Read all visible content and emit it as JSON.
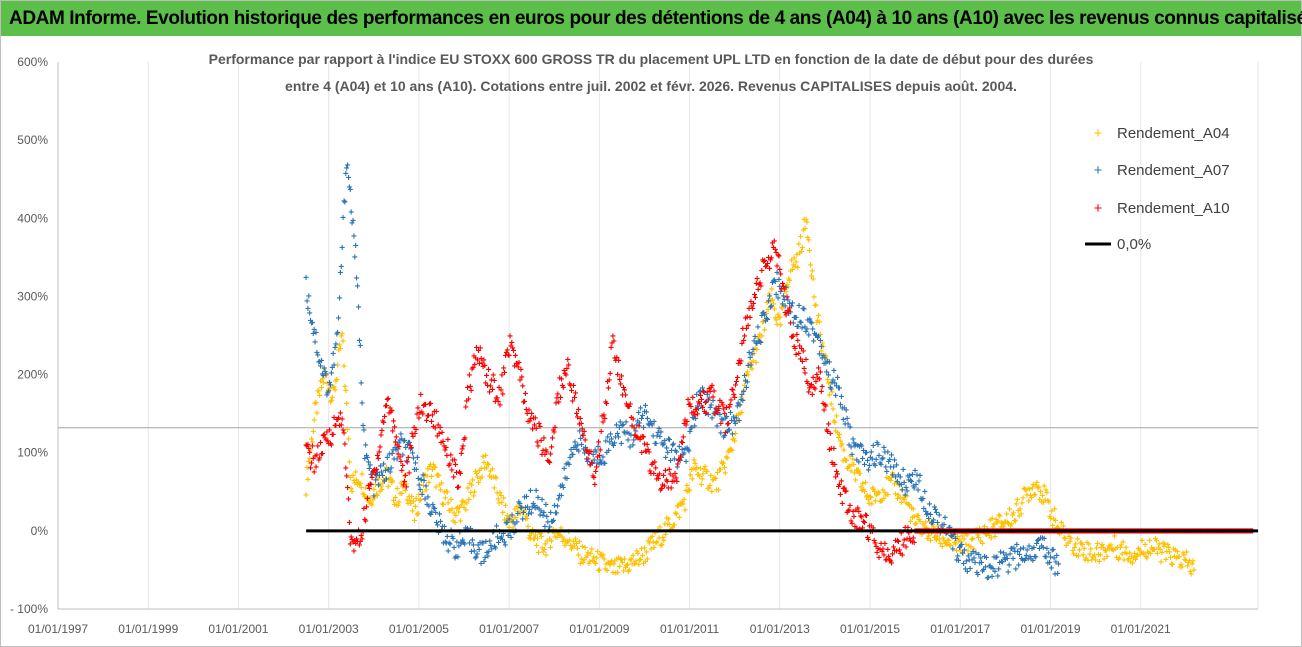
{
  "header": {
    "banner": "ADAM Informe. Evolution historique des performances en euros pour des détentions de 4 ans (A04) à 10 ans (A10) avec les revenus connus capitalisés"
  },
  "chart_data": {
    "type": "scatter",
    "title_lines": [
      "Performance par rapport à l'indice EU STOXX 600 GROSS TR  du placement UPL LTD en fonction de la date de début pour des durées",
      "entre 4 (A04) et 10 ans (A10).  Cotations entre juil. 2002 et févr. 2026. Revenus CAPITALISES depuis août. 2004."
    ],
    "x_tick_labels": [
      "01/01/1997",
      "01/01/1999",
      "01/01/2001",
      "01/01/2003",
      "01/01/2005",
      "01/01/2007",
      "01/01/2009",
      "01/01/2011",
      "01/01/2013",
      "01/01/2015",
      "01/01/2017",
      "01/01/2019",
      "01/01/2021"
    ],
    "x_tick_years": [
      1997,
      1999,
      2001,
      2003,
      2005,
      2007,
      2009,
      2011,
      2013,
      2015,
      2017,
      2019,
      2021
    ],
    "xlim": [
      1997,
      2023.6
    ],
    "y_tick_labels": [
      "- 100%",
      "0%",
      "100%",
      "200%",
      "300%",
      "400%",
      "500%",
      "600%"
    ],
    "y_tick_values": [
      -100,
      0,
      100,
      200,
      300,
      400,
      500,
      600
    ],
    "ylim": [
      -100,
      600
    ],
    "reference_line_value": 132,
    "xlabel": "",
    "ylabel": "",
    "legend_position": "top-right",
    "series": [
      {
        "name": "Rendement_A04",
        "color": "#ffc000",
        "x": [
          2002.5,
          2002.7,
          2002.9,
          2003.1,
          2003.3,
          2003.5,
          2003.7,
          2003.9,
          2004.1,
          2004.3,
          2004.5,
          2004.7,
          2004.9,
          2005.1,
          2005.3,
          2005.5,
          2005.8,
          2006.0,
          2006.3,
          2006.5,
          2006.8,
          2007.0,
          2007.3,
          2007.5,
          2007.8,
          2008.0,
          2008.3,
          2008.6,
          2009.0,
          2009.3,
          2009.6,
          2010.0,
          2010.3,
          2010.6,
          2010.9,
          2011.1,
          2011.3,
          2011.6,
          2011.9,
          2012.1,
          2012.3,
          2012.6,
          2012.8,
          2013.0,
          2013.2,
          2013.4,
          2013.6,
          2013.8,
          2014.0,
          2014.2,
          2014.4,
          2014.6,
          2014.8,
          2015.0,
          2015.2,
          2015.5,
          2015.8,
          2016.0,
          2016.3,
          2016.6,
          2017.0,
          2017.3,
          2017.6,
          2017.9,
          2018.2,
          2018.5,
          2018.7,
          2018.9,
          2019.2,
          2019.6,
          2020.0,
          2020.4,
          2020.8,
          2021.2,
          2021.6,
          2022.0,
          2022.2
        ],
        "values": [
          60,
          150,
          200,
          170,
          250,
          60,
          70,
          40,
          60,
          70,
          40,
          60,
          20,
          60,
          80,
          50,
          20,
          30,
          70,
          90,
          40,
          10,
          30,
          -10,
          -20,
          0,
          -10,
          -30,
          -40,
          -50,
          -45,
          -30,
          -10,
          10,
          40,
          80,
          70,
          60,
          100,
          150,
          200,
          250,
          300,
          260,
          330,
          350,
          400,
          280,
          220,
          150,
          100,
          80,
          60,
          40,
          50,
          60,
          40,
          10,
          0,
          -10,
          -20,
          -10,
          0,
          10,
          20,
          50,
          60,
          40,
          0,
          -20,
          -30,
          -20,
          -30,
          -20,
          -30,
          -40,
          -50
        ]
      },
      {
        "name": "Rendement_A07",
        "color": "#2e75b6",
        "x": [
          2002.5,
          2002.6,
          2002.8,
          2003.0,
          2003.2,
          2003.4,
          2003.6,
          2003.8,
          2004.0,
          2004.3,
          2004.6,
          2004.9,
          2005.2,
          2005.5,
          2005.8,
          2006.1,
          2006.4,
          2006.7,
          2007.0,
          2007.3,
          2007.6,
          2007.9,
          2008.2,
          2008.5,
          2008.8,
          2009.1,
          2009.4,
          2009.7,
          2010.0,
          2010.3,
          2010.6,
          2010.9,
          2011.2,
          2011.5,
          2011.8,
          2012.1,
          2012.3,
          2012.6,
          2012.9,
          2013.1,
          2013.3,
          2013.6,
          2013.9,
          2014.1,
          2014.3,
          2014.6,
          2014.9,
          2015.2,
          2015.5,
          2015.8,
          2016.0,
          2016.3,
          2016.6,
          2016.9,
          2017.2,
          2017.6,
          2018.0,
          2018.4,
          2018.8,
          2019.0,
          2019.2
        ],
        "values": [
          310,
          280,
          220,
          180,
          250,
          480,
          350,
          100,
          60,
          80,
          110,
          90,
          40,
          0,
          -20,
          -10,
          -30,
          -10,
          0,
          30,
          40,
          10,
          60,
          120,
          90,
          100,
          130,
          120,
          150,
          120,
          100,
          90,
          170,
          160,
          130,
          150,
          210,
          260,
          320,
          300,
          280,
          270,
          240,
          200,
          180,
          110,
          90,
          100,
          80,
          60,
          70,
          30,
          10,
          -20,
          -40,
          -50,
          -40,
          -30,
          -20,
          -30,
          -50
        ]
      },
      {
        "name": "Rendement_A10",
        "color": "#ff0000",
        "x": [
          2002.5,
          2002.7,
          2002.9,
          2003.1,
          2003.3,
          2003.5,
          2003.7,
          2003.9,
          2004.1,
          2004.3,
          2004.5,
          2004.7,
          2005.0,
          2005.3,
          2005.6,
          2005.9,
          2006.1,
          2006.3,
          2006.5,
          2006.8,
          2007.0,
          2007.2,
          2007.4,
          2007.6,
          2007.9,
          2008.1,
          2008.3,
          2008.6,
          2008.9,
          2009.1,
          2009.3,
          2009.6,
          2009.9,
          2010.1,
          2010.4,
          2010.7,
          2010.9,
          2011.2,
          2011.5,
          2011.8,
          2012.0,
          2012.2,
          2012.4,
          2012.6,
          2012.9,
          2013.1,
          2013.3,
          2013.5,
          2013.7,
          2013.9,
          2014.1,
          2014.3,
          2014.6,
          2014.9,
          2015.2,
          2015.5,
          2015.8,
          2016.0,
          2016.2,
          2016.5,
          2017.0,
          2017.5,
          2018.0,
          2018.5,
          2019.0,
          2019.5,
          2020.0,
          2020.5,
          2021.0,
          2021.5,
          2022.0,
          2022.5,
          2023.0,
          2023.5
        ],
        "values": [
          100,
          90,
          110,
          130,
          150,
          -20,
          -10,
          50,
          100,
          170,
          120,
          60,
          160,
          150,
          110,
          60,
          180,
          230,
          200,
          170,
          240,
          210,
          150,
          130,
          90,
          180,
          210,
          130,
          70,
          150,
          240,
          160,
          120,
          90,
          60,
          70,
          150,
          160,
          170,
          140,
          180,
          250,
          300,
          330,
          360,
          300,
          250,
          220,
          180,
          200,
          120,
          60,
          20,
          10,
          -20,
          -30,
          -10,
          0,
          0,
          0,
          0,
          0,
          0,
          0,
          0,
          0,
          0,
          0,
          0,
          0,
          0,
          0,
          0,
          0
        ]
      },
      {
        "name": "0,0%",
        "color": "#000000",
        "x": [
          2002.5,
          2023.6
        ],
        "values": [
          0,
          0
        ]
      }
    ]
  }
}
